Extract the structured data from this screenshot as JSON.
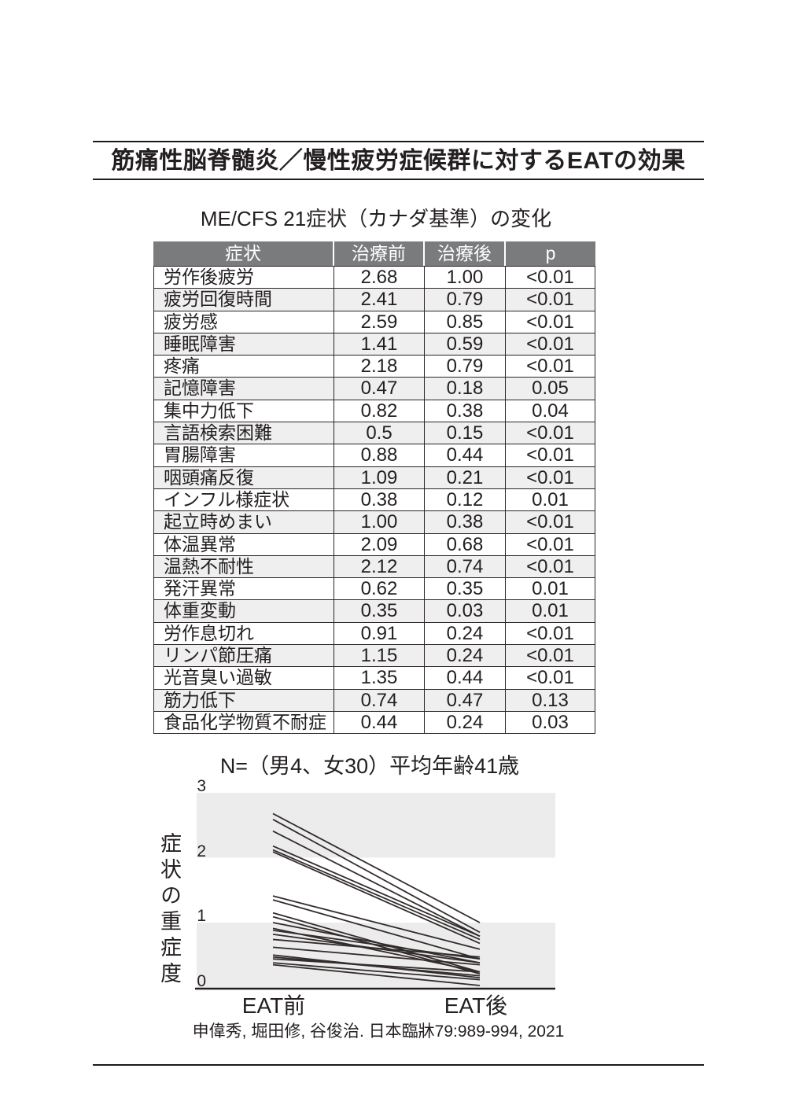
{
  "page": {
    "main_title": "筋痛性脳脊髄炎／慢性疲労症候群に対するEATの効果",
    "citation": "申偉秀, 堀田修, 谷俊治. 日本臨牀79:989-994, 2021"
  },
  "table": {
    "title": "ME/CFS 21症状（カナダ基準）の変化",
    "headers": [
      "症状",
      "治療前",
      "治療後",
      "p"
    ],
    "rows": [
      {
        "symptom": "労作後疲労",
        "pre": "2.68",
        "post": "1.00",
        "p": "<0.01"
      },
      {
        "symptom": "疲労回復時間",
        "pre": "2.41",
        "post": "0.79",
        "p": "<0.01"
      },
      {
        "symptom": "疲労感",
        "pre": "2.59",
        "post": "0.85",
        "p": "<0.01"
      },
      {
        "symptom": "睡眠障害",
        "pre": "1.41",
        "post": "0.59",
        "p": "<0.01"
      },
      {
        "symptom": "疼痛",
        "pre": "2.18",
        "post": "0.79",
        "p": "<0.01"
      },
      {
        "symptom": "記憶障害",
        "pre": "0.47",
        "post": "0.18",
        "p": "0.05"
      },
      {
        "symptom": "集中力低下",
        "pre": "0.82",
        "post": "0.38",
        "p": "0.04"
      },
      {
        "symptom": "言語検索困難",
        "pre": "0.5",
        "post": "0.15",
        "p": "<0.01"
      },
      {
        "symptom": "胃腸障害",
        "pre": "0.88",
        "post": "0.44",
        "p": "<0.01"
      },
      {
        "symptom": "咽頭痛反復",
        "pre": "1.09",
        "post": "0.21",
        "p": "<0.01"
      },
      {
        "symptom": "インフル様症状",
        "pre": "0.38",
        "post": "0.12",
        "p": "0.01"
      },
      {
        "symptom": "起立時めまい",
        "pre": "1.00",
        "post": "0.38",
        "p": "<0.01"
      },
      {
        "symptom": "体温異常",
        "pre": "2.09",
        "post": "0.68",
        "p": "<0.01"
      },
      {
        "symptom": "温熱不耐性",
        "pre": "2.12",
        "post": "0.74",
        "p": "<0.01"
      },
      {
        "symptom": "発汗異常",
        "pre": "0.62",
        "post": "0.35",
        "p": "0.01"
      },
      {
        "symptom": "体重変動",
        "pre": "0.35",
        "post": "0.03",
        "p": "0.01"
      },
      {
        "symptom": "労作息切れ",
        "pre": "0.91",
        "post": "0.24",
        "p": "<0.01"
      },
      {
        "symptom": "リンパ節圧痛",
        "pre": "1.15",
        "post": "0.24",
        "p": "<0.01"
      },
      {
        "symptom": "光音臭い過敏",
        "pre": "1.35",
        "post": "0.44",
        "p": "<0.01"
      },
      {
        "symptom": "筋力低下",
        "pre": "0.74",
        "post": "0.47",
        "p": "0.13"
      },
      {
        "symptom": "食品化学物質不耐症",
        "pre": "0.44",
        "post": "0.24",
        "p": "0.03"
      }
    ]
  },
  "chart_data": {
    "type": "line",
    "title": "N=（男4、女30）平均年齢41歳",
    "categories": [
      "EAT前",
      "EAT後"
    ],
    "ylabel": "症状の重症度",
    "ylim": [
      0,
      3
    ],
    "yticks": [
      3,
      2,
      1,
      0
    ],
    "grid_bands": [
      [
        2,
        3
      ],
      [
        0,
        1
      ]
    ],
    "legend": "none",
    "series": [
      {
        "name": "労作後疲労",
        "values": [
          2.68,
          1.0
        ]
      },
      {
        "name": "疲労回復時間",
        "values": [
          2.41,
          0.79
        ]
      },
      {
        "name": "疲労感",
        "values": [
          2.59,
          0.85
        ]
      },
      {
        "name": "睡眠障害",
        "values": [
          1.41,
          0.59
        ]
      },
      {
        "name": "疼痛",
        "values": [
          2.18,
          0.79
        ]
      },
      {
        "name": "記憶障害",
        "values": [
          0.47,
          0.18
        ]
      },
      {
        "name": "集中力低下",
        "values": [
          0.82,
          0.38
        ]
      },
      {
        "name": "言語検索困難",
        "values": [
          0.5,
          0.15
        ]
      },
      {
        "name": "胃腸障害",
        "values": [
          0.88,
          0.44
        ]
      },
      {
        "name": "咽頭痛反復",
        "values": [
          1.09,
          0.21
        ]
      },
      {
        "name": "インフル様症状",
        "values": [
          0.38,
          0.12
        ]
      },
      {
        "name": "起立時めまい",
        "values": [
          1.0,
          0.38
        ]
      },
      {
        "name": "体温異常",
        "values": [
          2.09,
          0.68
        ]
      },
      {
        "name": "温熱不耐性",
        "values": [
          2.12,
          0.74
        ]
      },
      {
        "name": "発汗異常",
        "values": [
          0.62,
          0.35
        ]
      },
      {
        "name": "体重変動",
        "values": [
          0.35,
          0.03
        ]
      },
      {
        "name": "労作息切れ",
        "values": [
          0.91,
          0.24
        ]
      },
      {
        "name": "リンパ節圧痛",
        "values": [
          1.15,
          0.24
        ]
      },
      {
        "name": "光音臭い過敏",
        "values": [
          1.35,
          0.44
        ]
      },
      {
        "name": "筋力低下",
        "values": [
          0.74,
          0.47
        ]
      },
      {
        "name": "食品化学物質不耐症",
        "values": [
          0.44,
          0.24
        ]
      }
    ]
  },
  "colors": {
    "text": "#231f20",
    "rule": "#1c1a1a",
    "header_bg": "#7a7b7d",
    "row_stripe": "#efefef",
    "chart_band": "#ececec",
    "data_line": "#332c2c",
    "axis_line": "#231f20"
  }
}
